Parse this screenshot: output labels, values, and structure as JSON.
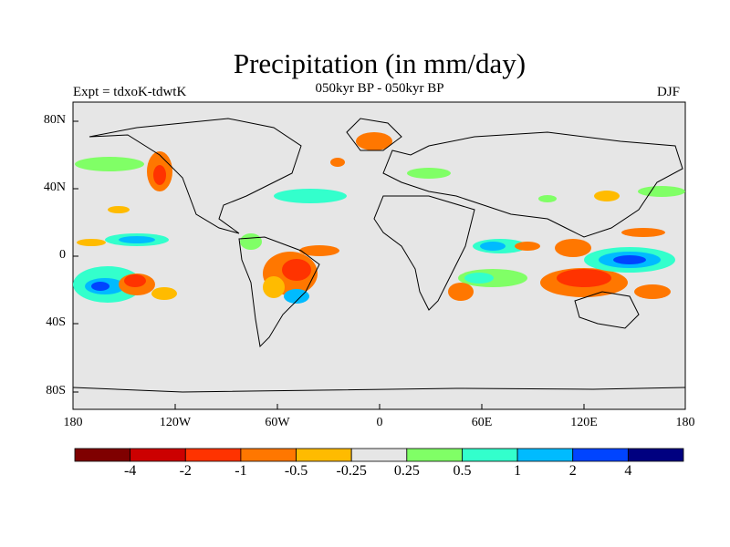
{
  "title": "Precipitation (in mm/day)",
  "subtitle": "050kyr BP - 050kyr BP",
  "experiment": "Expt = tdxoK-tdwtK",
  "season": "DJF",
  "map": {
    "background": "#e6e6e6",
    "lat_ticks": [
      "80N",
      "40N",
      "0",
      "40S",
      "80S"
    ],
    "lon_ticks": [
      "180",
      "120W",
      "60W",
      "0",
      "60E",
      "120E",
      "180"
    ]
  },
  "colorbar": {
    "colors": [
      "#7f0000",
      "#cc0000",
      "#ff3300",
      "#ff7700",
      "#ffbb00",
      "#e6e6e6",
      "#80ff66",
      "#33ffcc",
      "#00bbff",
      "#0044ff",
      "#000080"
    ],
    "labels": [
      "-4",
      "-2",
      "-1",
      "-0.5",
      "-0.25",
      "0.25",
      "0.5",
      "1",
      "2",
      "4"
    ]
  }
}
